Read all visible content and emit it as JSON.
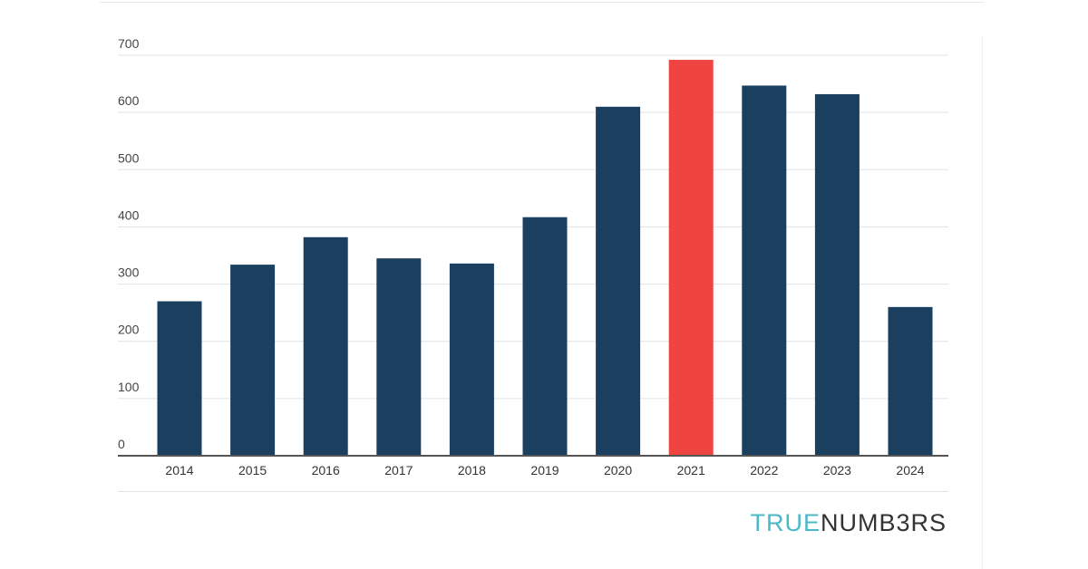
{
  "brand": {
    "logo_part1": "TRUE",
    "logo_part2": "NUMB3RS",
    "accent_color": "#4bb8c8",
    "dark_color": "#333333"
  },
  "chart_data": {
    "type": "bar",
    "title": "",
    "xlabel": "",
    "ylabel": "",
    "categories": [
      "2014",
      "2015",
      "2016",
      "2017",
      "2018",
      "2019",
      "2020",
      "2021",
      "2022",
      "2023",
      "2024"
    ],
    "values": [
      270,
      334,
      382,
      345,
      336,
      417,
      610,
      692,
      647,
      632,
      260
    ],
    "ylim": [
      0,
      700
    ],
    "yticks": [
      "0",
      "100",
      "200",
      "300",
      "400",
      "500",
      "600",
      "700"
    ],
    "grid": true,
    "legend": "none",
    "bar_color": "#1b3f5e",
    "highlight_category": "2021",
    "highlight_color": "#ee4540"
  }
}
